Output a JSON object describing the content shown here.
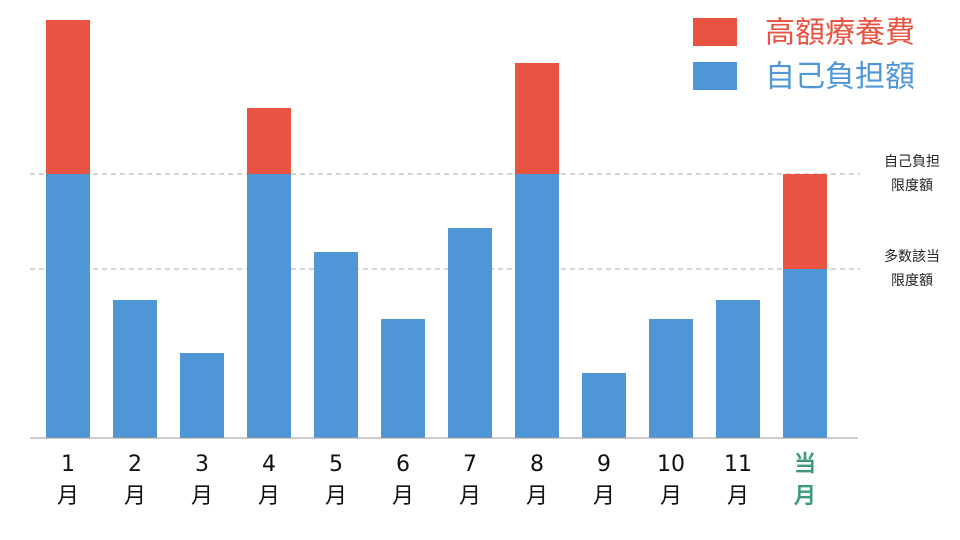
{
  "chart_data": {
    "type": "stacked_bar",
    "categories": [
      "1月",
      "2月",
      "3月",
      "4月",
      "5月",
      "6月",
      "7月",
      "8月",
      "9月",
      "10月",
      "11月",
      "当月"
    ],
    "category_label_colors": [
      "#111111",
      "#111111",
      "#111111",
      "#111111",
      "#111111",
      "#111111",
      "#111111",
      "#111111",
      "#111111",
      "#111111",
      "#111111",
      "#3a9b78"
    ],
    "series": [
      {
        "name": "自己負担額",
        "color": "#4f96d6",
        "values": [
          264,
          138,
          85,
          264,
          186,
          119,
          210,
          264,
          65,
          119,
          138,
          169
        ]
      },
      {
        "name": "高額療養費",
        "color": "#e85441",
        "values": [
          154,
          0,
          0,
          66,
          0,
          0,
          0,
          111,
          0,
          0,
          0,
          95
        ]
      }
    ],
    "reference_lines": [
      {
        "value": 264,
        "label": [
          "自己負担",
          "限度額"
        ]
      },
      {
        "value": 169,
        "label": [
          "多数該当",
          "限度額"
        ]
      }
    ],
    "ylim": [
      0,
      420
    ],
    "legend": "top-right"
  }
}
